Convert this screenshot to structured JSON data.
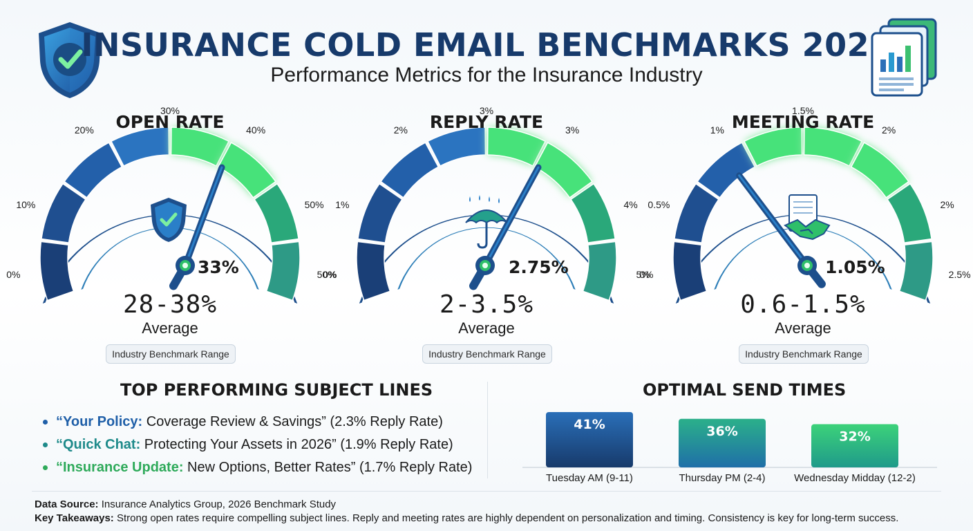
{
  "header": {
    "title": "INSURANCE COLD EMAIL BENCHMARKS 2026",
    "subtitle": "Performance Metrics for the Insurance Industry"
  },
  "chart_data": [
    {
      "type": "gauge",
      "title": "OPEN RATE",
      "ticks": [
        "0%",
        "10%",
        "20%",
        "30%",
        "40%",
        "50%",
        "50%"
      ],
      "value": 33,
      "value_label": "33%",
      "range_label": "28-38%",
      "sub_label": "Average",
      "badge": "Industry Benchmark Range",
      "highlight_segments": [
        4,
        5
      ],
      "icon": "shield-check-icon"
    },
    {
      "type": "gauge",
      "title": "REPLY RATE",
      "ticks": [
        "0%",
        "1%",
        "2%",
        "3%",
        "3%",
        "4%",
        "5%"
      ],
      "value": 2.75,
      "value_label": "2.75%",
      "range_label": "2-3.5%",
      "sub_label": "Average",
      "badge": "Industry Benchmark Range",
      "highlight_segments": [
        4,
        5
      ],
      "icon": "umbrella-icon"
    },
    {
      "type": "gauge",
      "title": "MEETING RATE",
      "ticks": [
        "0%",
        "0.5%",
        "1%",
        "1.5%",
        "2%",
        "2%",
        "2.5%"
      ],
      "value": 1.05,
      "value_label": "1.05%",
      "range_label": "0.6-1.5%",
      "sub_label": "Average",
      "badge": "Industry Benchmark Range",
      "highlight_segments": [
        3,
        4,
        5
      ],
      "icon": "handshake-icon"
    },
    {
      "type": "bar",
      "title": "OPTIMAL SEND TIMES",
      "categories": [
        "Tuesday AM (9-11)",
        "Thursday PM (2-4)",
        "Wednesday Midday (12-2)"
      ],
      "values": [
        41,
        36,
        32
      ],
      "value_labels": [
        "41%",
        "36%",
        "32%"
      ],
      "ylim": [
        0,
        41
      ]
    }
  ],
  "subject_lines": {
    "title": "TOP PERFORMING SUBJECT LINES",
    "items": [
      {
        "key": "“Your Policy:",
        "rest": " Coverage Review & Savings” (2.3% Reply Rate)",
        "color": "#1f5fa8"
      },
      {
        "key": "“Quick Chat:",
        "rest": " Protecting Your Assets in 2026” (1.9% Reply Rate)",
        "color": "#1e8a8a"
      },
      {
        "key": "“Insurance Update:",
        "rest": " New Options, Better Rates” (1.7% Reply Rate)",
        "color": "#2eaa5a"
      }
    ]
  },
  "footer": {
    "source_label": "Data Source:",
    "source_text": " Insurance Analytics Group, 2026 Benchmark Study",
    "takeaway_label": "Key Takeaways:",
    "takeaway_text": " Strong open rates require compelling subject lines. Reply and meeting rates are highly dependent on personalization and timing. Consistency is key for long-term success."
  },
  "colors": {
    "navy": "#173a6b",
    "blue": "#2a6fb8",
    "teal": "#1f9a8a",
    "green": "#34c76a",
    "glow": "#4de87a"
  }
}
